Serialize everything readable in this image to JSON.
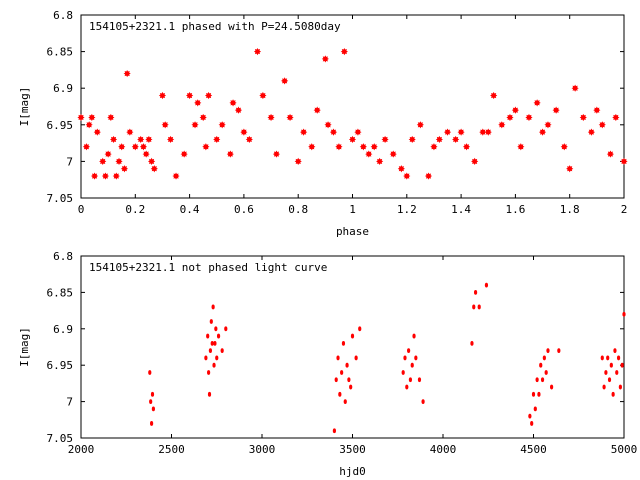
{
  "chart_data": [
    {
      "type": "scatter",
      "title": "154105+2321.1 phased with P=24.5080day",
      "xlabel": "phase",
      "ylabel": "I[mag]",
      "xlim": [
        0,
        2
      ],
      "ylim": [
        6.8,
        7.05
      ],
      "y_inverted": true,
      "grid": false,
      "marker": "star",
      "color": "#ff0000",
      "x_ticks": [
        "0",
        "0.2",
        "0.4",
        "0.6",
        "0.8",
        "1",
        "1.2",
        "1.4",
        "1.6",
        "1.8",
        "2"
      ],
      "y_ticks": [
        "6.8",
        "6.85",
        "6.9",
        "6.95",
        "7",
        "7.05"
      ],
      "x": [
        0.0,
        0.02,
        0.03,
        0.04,
        0.05,
        0.06,
        0.08,
        0.09,
        0.1,
        0.11,
        0.12,
        0.13,
        0.14,
        0.15,
        0.16,
        0.17,
        0.18,
        0.2,
        0.22,
        0.23,
        0.24,
        0.25,
        0.26,
        0.27,
        0.3,
        0.31,
        0.33,
        0.35,
        0.38,
        0.4,
        0.42,
        0.43,
        0.45,
        0.46,
        0.47,
        0.5,
        0.52,
        0.55,
        0.56,
        0.58,
        0.6,
        0.62,
        0.65,
        0.67,
        0.7,
        0.72,
        0.75,
        0.77,
        0.8,
        0.82,
        0.85,
        0.87,
        0.9,
        0.91,
        0.93,
        0.95,
        0.97,
        1.0,
        1.02,
        1.04,
        1.06,
        1.08,
        1.1,
        1.12,
        1.15,
        1.18,
        1.2,
        1.22,
        1.25,
        1.28,
        1.3,
        1.32,
        1.35,
        1.38,
        1.4,
        1.42,
        1.45,
        1.48,
        1.5,
        1.52,
        1.55,
        1.58,
        1.6,
        1.62,
        1.65,
        1.68,
        1.7,
        1.72,
        1.75,
        1.78,
        1.8,
        1.82,
        1.85,
        1.88,
        1.9,
        1.92,
        1.95,
        1.97,
        2.0
      ],
      "y": [
        6.94,
        6.98,
        6.95,
        6.94,
        7.02,
        6.96,
        7.0,
        7.02,
        6.99,
        6.94,
        6.97,
        7.02,
        7.0,
        6.98,
        7.01,
        6.88,
        6.96,
        6.98,
        6.97,
        6.98,
        6.99,
        6.97,
        7.0,
        7.01,
        6.91,
        6.95,
        6.97,
        7.02,
        6.99,
        6.91,
        6.95,
        6.92,
        6.94,
        6.98,
        6.91,
        6.97,
        6.95,
        6.99,
        6.92,
        6.93,
        6.96,
        6.97,
        6.85,
        6.91,
        6.94,
        6.99,
        6.89,
        6.94,
        7.0,
        6.96,
        6.98,
        6.93,
        6.86,
        6.95,
        6.96,
        6.98,
        6.85,
        6.97,
        6.96,
        6.98,
        6.99,
        6.98,
        7.0,
        6.97,
        6.99,
        7.01,
        7.02,
        6.97,
        6.95,
        7.02,
        6.98,
        6.97,
        6.96,
        6.97,
        6.96,
        6.98,
        7.0,
        6.96,
        6.96,
        6.91,
        6.95,
        6.94,
        6.93,
        6.98,
        6.94,
        6.92,
        6.96,
        6.95,
        6.93,
        6.98,
        7.01,
        6.9,
        6.94,
        6.96,
        6.93,
        6.95,
        6.99,
        6.94,
        7.0
      ]
    },
    {
      "type": "scatter",
      "title": "154105+2321.1 not phased light curve",
      "xlabel": "hjd0",
      "ylabel": "I[mag]",
      "xlim": [
        2000,
        5000
      ],
      "ylim": [
        6.8,
        7.05
      ],
      "y_inverted": true,
      "grid": false,
      "marker": "dot",
      "color": "#ff0000",
      "x_ticks": [
        "2000",
        "2500",
        "3000",
        "3500",
        "4000",
        "4500",
        "5000"
      ],
      "y_ticks": [
        "6.8",
        "6.85",
        "6.9",
        "6.95",
        "7",
        "7.05"
      ],
      "x": [
        2380,
        2385,
        2390,
        2395,
        2400,
        2690,
        2700,
        2705,
        2710,
        2715,
        2720,
        2725,
        2730,
        2735,
        2740,
        2745,
        2750,
        2760,
        2780,
        2800,
        3400,
        3410,
        3420,
        3430,
        3440,
        3450,
        3460,
        3470,
        3480,
        3490,
        3500,
        3520,
        3540,
        3780,
        3790,
        3800,
        3810,
        3820,
        3830,
        3840,
        3850,
        3870,
        3890,
        4160,
        4170,
        4180,
        4200,
        4240,
        4480,
        4490,
        4500,
        4510,
        4520,
        4530,
        4540,
        4550,
        4560,
        4570,
        4580,
        4600,
        4640,
        4880,
        4890,
        4900,
        4910,
        4920,
        4930,
        4940,
        4950,
        4960,
        4970,
        4980,
        4990,
        5000
      ],
      "y": [
        6.96,
        7.0,
        7.03,
        6.99,
        7.01,
        6.94,
        6.91,
        6.96,
        6.99,
        6.93,
        6.89,
        6.92,
        6.87,
        6.95,
        6.92,
        6.9,
        6.94,
        6.91,
        6.93,
        6.9,
        7.04,
        6.97,
        6.94,
        6.99,
        6.96,
        6.92,
        7.0,
        6.95,
        6.97,
        6.98,
        6.91,
        6.94,
        6.9,
        6.96,
        6.94,
        6.98,
        6.93,
        6.97,
        6.95,
        6.91,
        6.94,
        6.97,
        7.0,
        6.92,
        6.87,
        6.85,
        6.87,
        6.84,
        7.02,
        7.03,
        6.99,
        7.01,
        6.97,
        6.99,
        6.95,
        6.97,
        6.94,
        6.96,
        6.93,
        6.98,
        6.93,
        6.94,
        6.98,
        6.96,
        6.94,
        6.97,
        6.95,
        6.99,
        6.93,
        6.96,
        6.94,
        6.98,
        6.95,
        6.88
      ]
    }
  ]
}
